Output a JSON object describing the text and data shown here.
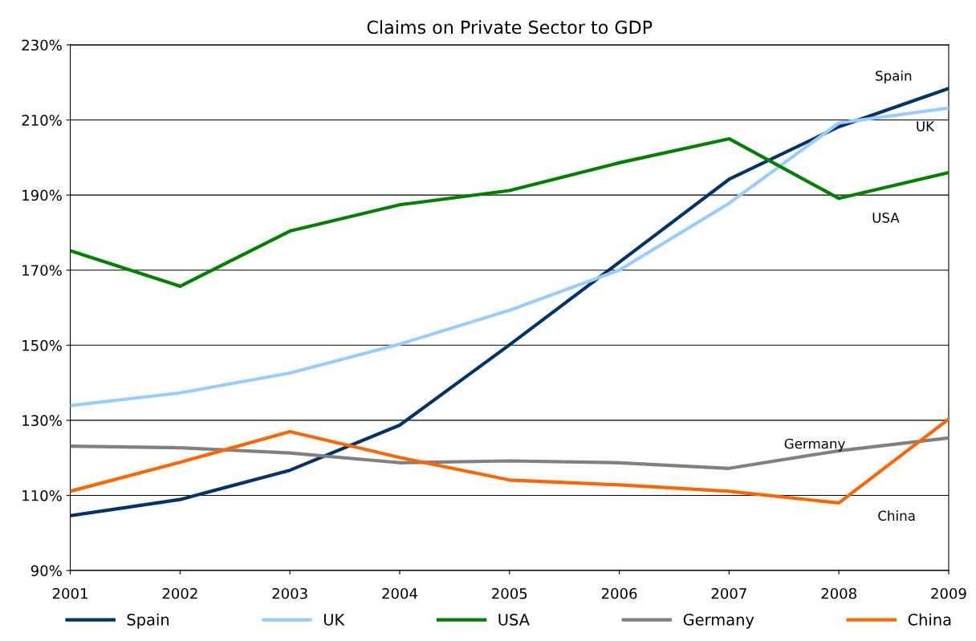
{
  "chart_data": {
    "type": "line",
    "title": "Claims on Private Sector to GDP",
    "x": [
      2001,
      2002,
      2003,
      2004,
      2005,
      2006,
      2007,
      2008,
      2009
    ],
    "series": [
      {
        "name": "Spain",
        "color": "#003366",
        "values": [
          104.6,
          108.9,
          116.7,
          128.7,
          150.1,
          172.1,
          194.2,
          208.2,
          218.4
        ]
      },
      {
        "name": "UK",
        "color": "#99ccff",
        "values": [
          133.9,
          137.3,
          142.6,
          150.3,
          159.3,
          170.0,
          187.8,
          209.2,
          213.2
        ]
      },
      {
        "name": "USA",
        "color": "#008000",
        "values": [
          175.2,
          165.7,
          180.4,
          187.4,
          191.2,
          198.6,
          205.0,
          189.1,
          196.0
        ]
      },
      {
        "name": "Germany",
        "color": "#808080",
        "values": [
          123.1,
          122.7,
          121.3,
          118.7,
          119.2,
          118.7,
          117.2,
          121.9,
          125.3
        ]
      },
      {
        "name": "China",
        "color": "#ff6600",
        "values": [
          111.1,
          118.8,
          127.0,
          120.1,
          114.1,
          112.8,
          111.1,
          108.0,
          130.3
        ]
      }
    ],
    "annotations": [
      "Spain",
      "UK",
      "USA",
      "Germany",
      "China"
    ],
    "xlim": [
      2001,
      2009
    ],
    "xticks": [
      2001,
      2002,
      2003,
      2004,
      2005,
      2006,
      2007,
      2008,
      2009
    ],
    "ylim": [
      90,
      230
    ],
    "yticks": [
      {
        "value": 90,
        "label": "90%"
      },
      {
        "value": 110,
        "label": "110%"
      },
      {
        "value": 130,
        "label": "130%"
      },
      {
        "value": 150,
        "label": "150%"
      },
      {
        "value": 170,
        "label": "170%"
      },
      {
        "value": 190,
        "label": "190%"
      },
      {
        "value": 210,
        "label": "210%"
      },
      {
        "value": 230,
        "label": "230%"
      }
    ],
    "grid": "y",
    "legend": "bottom",
    "marker": "none",
    "line_style": "solid"
  }
}
